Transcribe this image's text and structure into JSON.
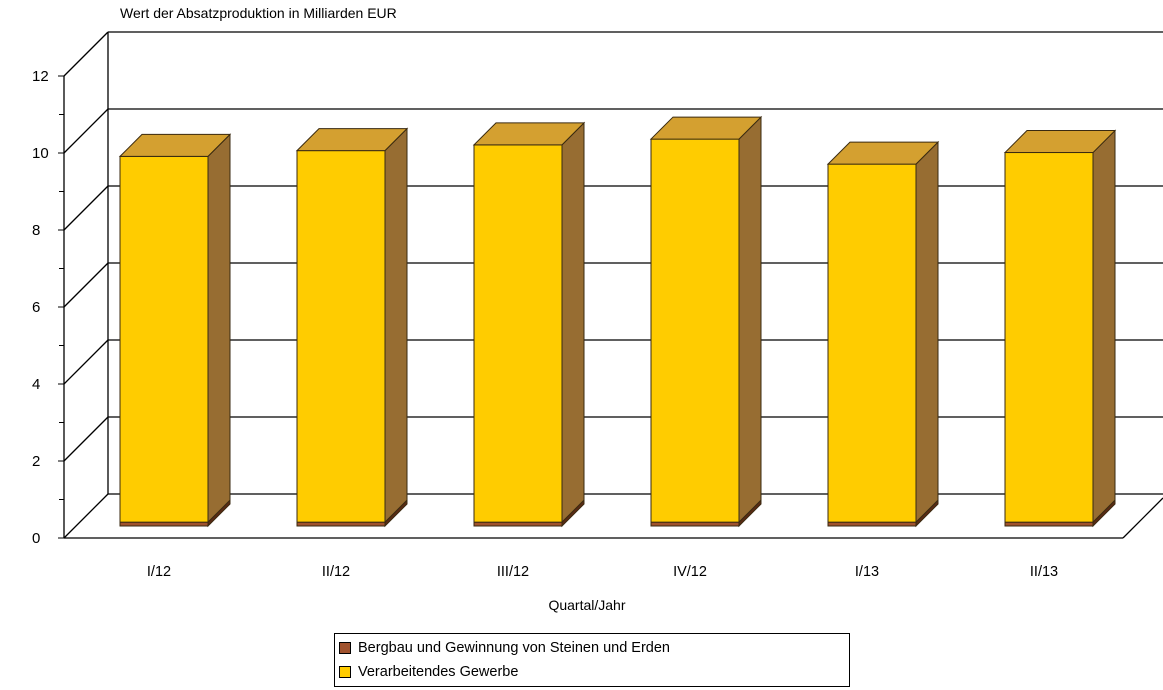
{
  "chart_data": {
    "type": "bar",
    "title": "Wert der Absatzproduktion in Milliarden EUR",
    "xlabel": "Quartal/Jahr",
    "ylabel": "",
    "categories": [
      "I/12",
      "II/12",
      "III/12",
      "IV/12",
      "I/13",
      "II/13"
    ],
    "series": [
      {
        "name": "Bergbau und Gewinnung von Steinen und Erden",
        "values": [
          0.1,
          0.1,
          0.1,
          0.1,
          0.1,
          0.1
        ],
        "color": "#a0522d"
      },
      {
        "name": "Verarbeitendes Gewerbe",
        "values": [
          9.5,
          9.65,
          9.8,
          9.95,
          9.3,
          9.6
        ],
        "color": "#ffcc00"
      }
    ],
    "stacked": true,
    "ylim": [
      0,
      12
    ],
    "yticks": [
      "0",
      "2",
      "4",
      "6",
      "8",
      "10",
      "12"
    ],
    "grid": true,
    "legend_position": "bottom"
  }
}
